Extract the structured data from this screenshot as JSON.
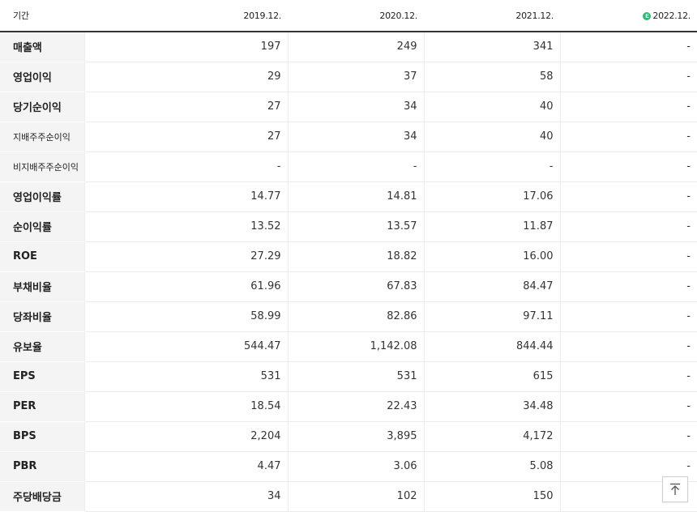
{
  "table": {
    "period_label": "기간",
    "columns": [
      {
        "label": "2019.12.",
        "estimate": false
      },
      {
        "label": "2020.12.",
        "estimate": false
      },
      {
        "label": "2021.12.",
        "estimate": false
      },
      {
        "label": "2022.12.",
        "estimate": true
      }
    ],
    "estimate_badge": "E",
    "rows": [
      {
        "label": "매출액",
        "values": [
          "197",
          "249",
          "341",
          "-"
        ]
      },
      {
        "label": "영업이익",
        "values": [
          "29",
          "37",
          "58",
          "-"
        ]
      },
      {
        "label": "당기순이익",
        "values": [
          "27",
          "34",
          "40",
          "-"
        ]
      },
      {
        "label": "지배주주순이익",
        "values": [
          "27",
          "34",
          "40",
          "-"
        ]
      },
      {
        "label": "비지배주주순이익",
        "values": [
          "-",
          "-",
          "-",
          "-"
        ]
      },
      {
        "label": "영업이익률",
        "values": [
          "14.77",
          "14.81",
          "17.06",
          "-"
        ]
      },
      {
        "label": "순이익률",
        "values": [
          "13.52",
          "13.57",
          "11.87",
          "-"
        ]
      },
      {
        "label": "ROE",
        "values": [
          "27.29",
          "18.82",
          "16.00",
          "-"
        ]
      },
      {
        "label": "부채비율",
        "values": [
          "61.96",
          "67.83",
          "84.47",
          "-"
        ]
      },
      {
        "label": "당좌비율",
        "values": [
          "58.99",
          "82.86",
          "97.11",
          "-"
        ]
      },
      {
        "label": "유보율",
        "values": [
          "544.47",
          "1,142.08",
          "844.44",
          "-"
        ]
      },
      {
        "label": "EPS",
        "values": [
          "531",
          "531",
          "615",
          "-"
        ]
      },
      {
        "label": "PER",
        "values": [
          "18.54",
          "22.43",
          "34.48",
          "-"
        ]
      },
      {
        "label": "BPS",
        "values": [
          "2,204",
          "3,895",
          "4,172",
          "-"
        ]
      },
      {
        "label": "PBR",
        "values": [
          "4.47",
          "3.06",
          "5.08",
          "-"
        ]
      },
      {
        "label": "주당배당금",
        "values": [
          "34",
          "102",
          "150",
          ""
        ]
      }
    ]
  },
  "top_button": {
    "icon": "arrow-up-to-top-icon"
  }
}
